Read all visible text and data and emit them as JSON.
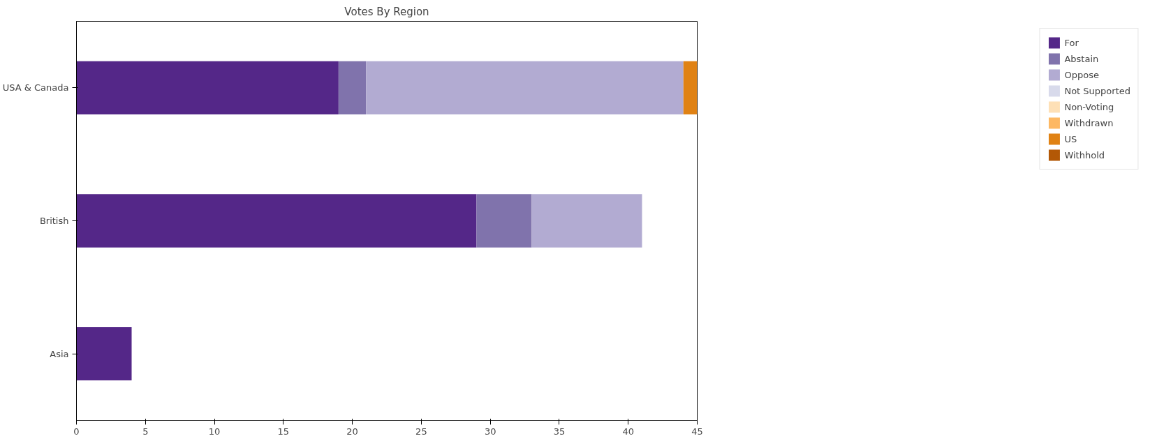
{
  "chart_data": {
    "type": "bar",
    "title": "Votes By Region",
    "orientation": "horizontal",
    "stacked": true,
    "categories": [
      "USA & Canada",
      "British",
      "Asia"
    ],
    "series": [
      {
        "name": "For",
        "color": "#542788",
        "values": [
          19,
          29,
          4
        ]
      },
      {
        "name": "Abstain",
        "color": "#8073ac",
        "values": [
          2,
          4,
          0
        ]
      },
      {
        "name": "Oppose",
        "color": "#b2abd2",
        "values": [
          23,
          8,
          0
        ]
      },
      {
        "name": "Not Supported",
        "color": "#d8daeb",
        "values": [
          0,
          0,
          0
        ]
      },
      {
        "name": "Non-Voting",
        "color": "#fee0b6",
        "values": [
          0,
          0,
          0
        ]
      },
      {
        "name": "Withdrawn",
        "color": "#fdb863",
        "values": [
          0,
          0,
          0
        ]
      },
      {
        "name": "US",
        "color": "#e08214",
        "values": [
          1,
          0,
          0
        ]
      },
      {
        "name": "Withhold",
        "color": "#b35806",
        "values": [
          0,
          0,
          0
        ]
      }
    ],
    "xlim": [
      0,
      45
    ],
    "xticks": [
      0,
      5,
      10,
      15,
      20,
      25,
      30,
      35,
      40,
      45
    ],
    "legend": "right"
  }
}
